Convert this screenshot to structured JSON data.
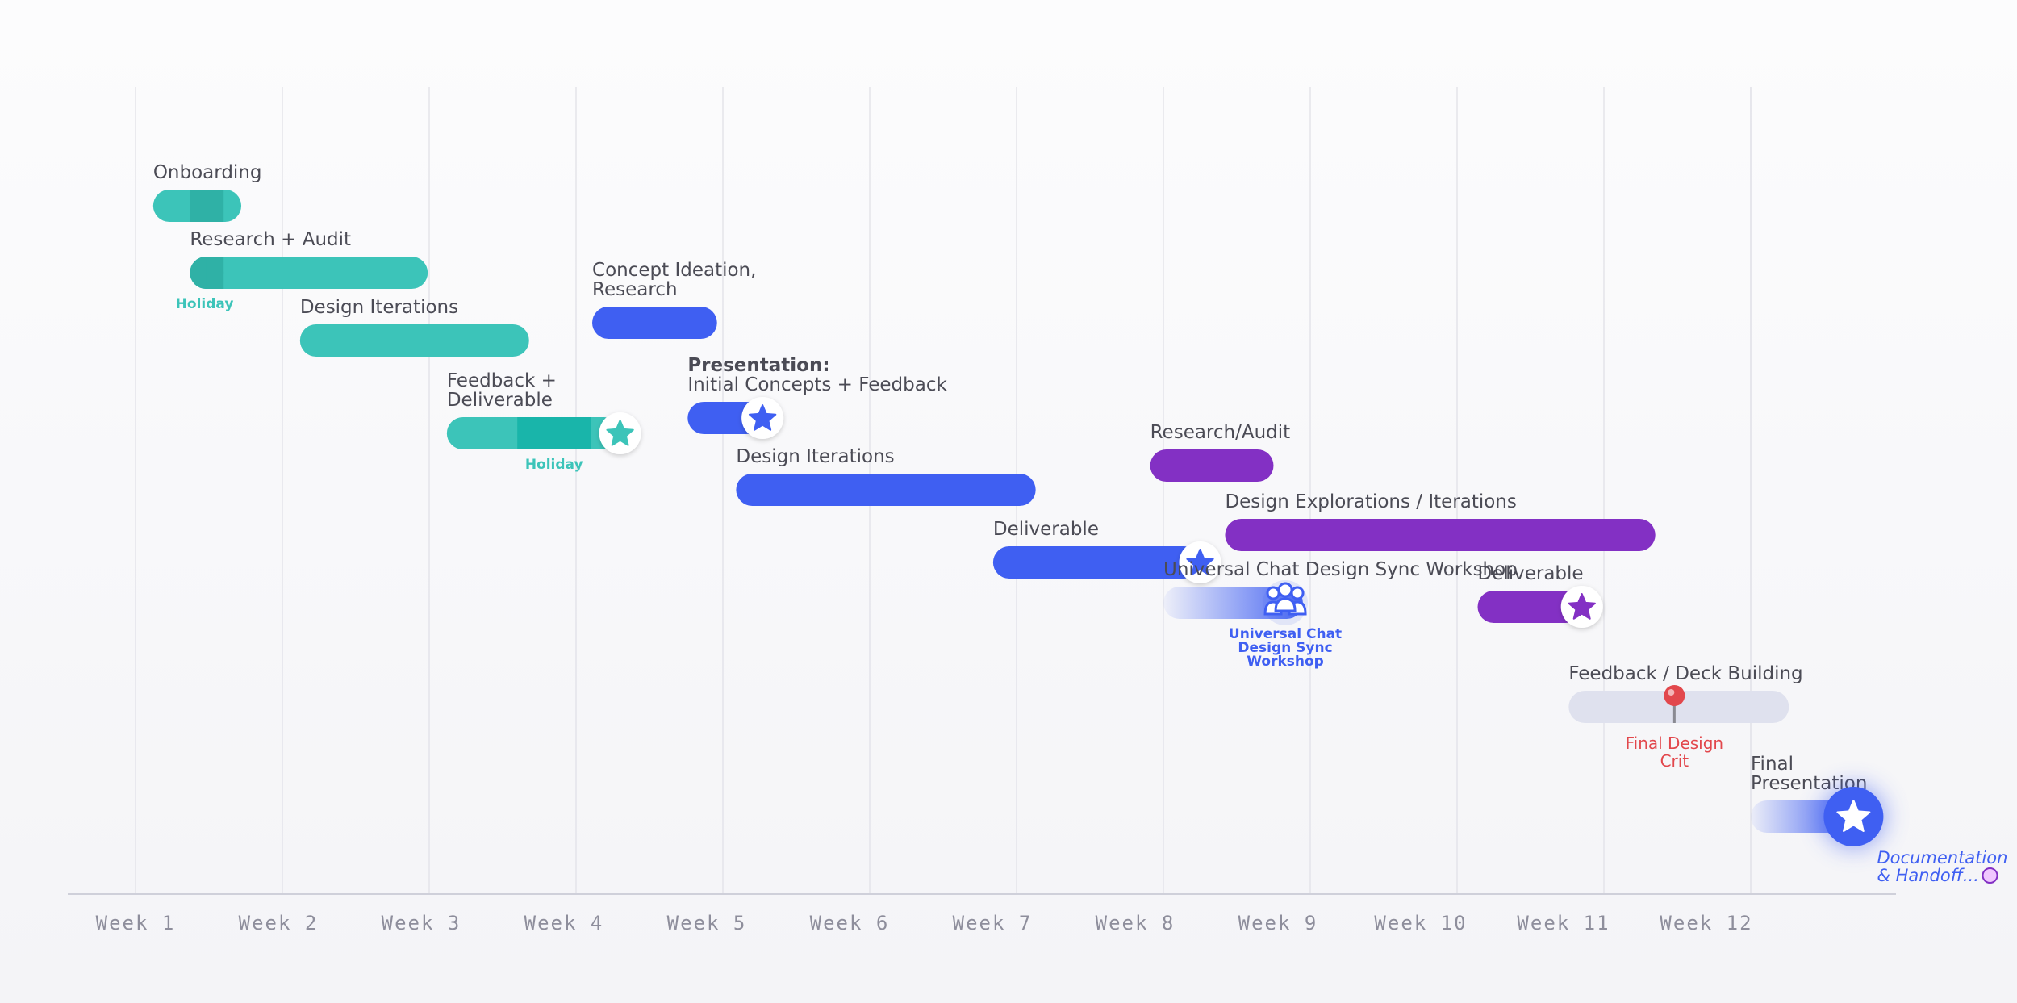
{
  "colors": {
    "teal": "#3cc4b9",
    "teal_dark": "#2fb1a6",
    "teal_deep": "#19b5aa",
    "blue": "#3f5ff2",
    "purple": "#8330c4",
    "gray_bar": "#dfe1ee",
    "red": "#e2474c",
    "label": "#4b4b55",
    "axis": "#8e8e9c"
  },
  "chart_data": {
    "type": "gantt",
    "x_unit": "week",
    "x_range": [
      0.55,
      13.4
    ],
    "tick_labels": [
      "Week 1",
      "Week 2",
      "Week 3",
      "Week 4",
      "Week 5",
      "Week 6",
      "Week 7",
      "Week 8",
      "Week 9",
      "Week 10",
      "Week 11",
      "Week 12"
    ],
    "tasks": [
      {
        "label": "Onboarding",
        "start": 1.12,
        "end": 1.72,
        "color": "teal",
        "highlights": [
          {
            "start": 1.37,
            "end": 1.6,
            "color": "teal_dark"
          }
        ]
      },
      {
        "label": "Research + Audit",
        "start": 1.37,
        "end": 2.99,
        "color": "teal",
        "highlights": [
          {
            "start": 1.37,
            "end": 1.6,
            "color": "teal_dark"
          }
        ],
        "note": {
          "text": "Holiday",
          "x": 1.47,
          "color": "teal"
        }
      },
      {
        "label": "Design Iterations",
        "start": 2.12,
        "end": 3.68,
        "color": "teal"
      },
      {
        "label": "Feedback + Deliverable",
        "label_lines": [
          "Feedback +",
          "Deliverable"
        ],
        "start": 3.12,
        "end": 4.3,
        "color": "teal",
        "highlights": [
          {
            "start": 3.6,
            "end": 4.1,
            "color": "teal_deep"
          }
        ],
        "milestone": {
          "at": 4.3,
          "icon": "star",
          "color": "teal"
        },
        "note": {
          "text": "Holiday",
          "x": 3.85,
          "color": "teal"
        }
      },
      {
        "label": "Concept Ideation, Research",
        "label_lines": [
          "Concept Ideation,",
          "Research"
        ],
        "start": 4.11,
        "end": 4.96,
        "color": "blue"
      },
      {
        "label": "Presentation: Initial Concepts + Feedback",
        "label_lines": [
          "Presentation:",
          "Initial Concepts + Feedback"
        ],
        "start": 4.76,
        "end": 5.27,
        "color": "blue",
        "milestone": {
          "at": 5.27,
          "icon": "star",
          "color": "blue"
        }
      },
      {
        "label": "Design Iterations",
        "start": 5.09,
        "end": 7.13,
        "color": "blue"
      },
      {
        "label": "Deliverable",
        "start": 6.84,
        "end": 8.25,
        "color": "blue",
        "milestone": {
          "at": 8.25,
          "icon": "star",
          "color": "blue"
        }
      },
      {
        "label": "Universal Chat Design Sync Workshop",
        "start": 8.0,
        "end": 8.95,
        "color": "blue",
        "fade": true,
        "milestone": {
          "at": 8.83,
          "icon": "people",
          "color": "blue"
        },
        "note": {
          "text": "Universal Chat Design Sync Workshop",
          "lines": [
            "Universal Chat",
            "Design Sync",
            "Workshop"
          ],
          "x": 8.83,
          "color": "blue"
        }
      },
      {
        "label": "Research/Audit",
        "start": 7.91,
        "end": 8.75,
        "color": "purple"
      },
      {
        "label": "Design Explorations / Iterations",
        "start": 8.42,
        "end": 11.35,
        "color": "purple"
      },
      {
        "label": "Deliverable",
        "start": 10.14,
        "end": 10.85,
        "color": "purple",
        "milestone": {
          "at": 10.85,
          "icon": "star",
          "color": "purple"
        }
      },
      {
        "label": "Feedback / Deck Building",
        "start": 10.76,
        "end": 12.26,
        "color": "gray_bar",
        "milestone": {
          "at": 11.48,
          "icon": "pin",
          "color": "red"
        },
        "note": {
          "text": "Final Design Crit",
          "lines": [
            "Final Design",
            "Crit"
          ],
          "x": 11.48,
          "color": "red"
        }
      },
      {
        "label": "Final Presentation",
        "label_lines": [
          "Final",
          "Presentation"
        ],
        "start": 12.0,
        "end": 12.7,
        "color": "blue",
        "fade": true,
        "milestone": {
          "at": 12.7,
          "icon": "star-big",
          "color": "blue"
        },
        "note": {
          "text": "Documentation & Handoff...",
          "lines": [
            "Documentation",
            "& Handoff..."
          ],
          "x": 12.86,
          "color": "blue",
          "italic": true
        }
      }
    ]
  }
}
